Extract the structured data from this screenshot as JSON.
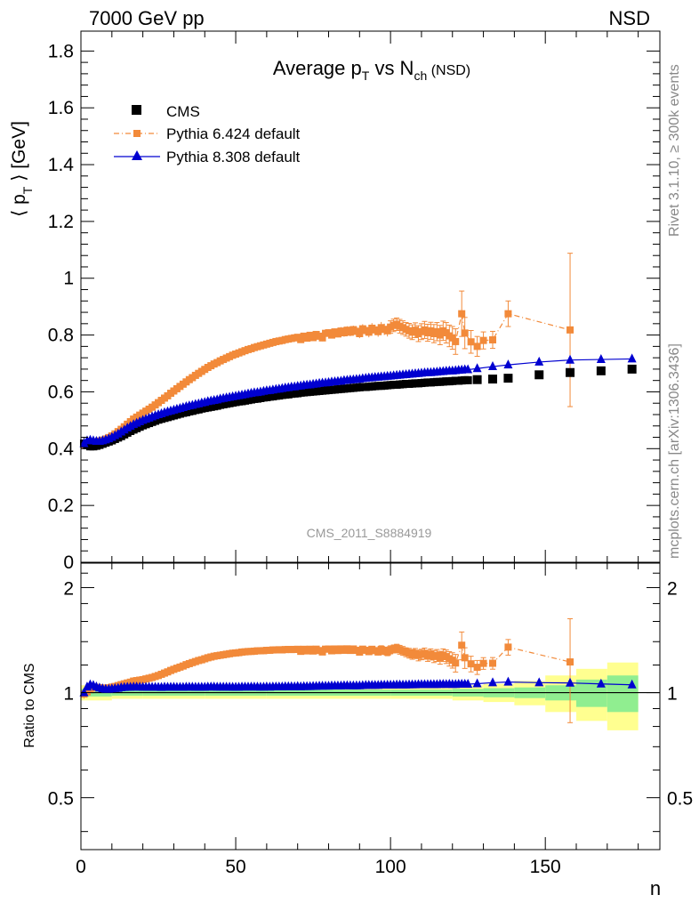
{
  "header": {
    "left": "7000 GeV pp",
    "right": "NSD"
  },
  "side_labels": {
    "rivet": "Rivet 3.1.10, ≥ 300k events",
    "mcplots": "mcplots.cern.ch [arXiv:1306.3436]"
  },
  "colors": {
    "cms": "#000000",
    "pythia6": "#f28a3a",
    "pythia8": "#0000d0",
    "band_inner": "#90ee90",
    "band_outer": "#ffff90"
  },
  "chart_data": [
    {
      "type": "scatter",
      "title": {
        "main": "Average p",
        "sub1": "T",
        "mid": " vs N",
        "sub2": "ch",
        "tail": " (NSD)"
      },
      "ylabel": {
        "pre": "⟨ p",
        "sub": "T",
        "post": " ⟩ [GeV]"
      },
      "xlim": [
        0,
        187
      ],
      "ylim": [
        0,
        1.87
      ],
      "yticks": [
        0,
        0.2,
        0.4,
        0.6,
        0.8,
        1,
        1.2,
        1.4,
        1.6,
        1.8
      ],
      "ytick_labels": [
        "0",
        "0.2",
        "0.4",
        "0.6",
        "0.8",
        "1",
        "1.2",
        "1.4",
        "1.6",
        "1.8"
      ],
      "watermark": "CMS_2011_S8884919",
      "legend": [
        "CMS",
        "Pythia 6.424 default",
        "Pythia 8.308 default"
      ],
      "series": [
        {
          "name": "CMS",
          "x": [
            1,
            2,
            3,
            4,
            5,
            6,
            7,
            8,
            9,
            10,
            11,
            12,
            13,
            14,
            15,
            16,
            17,
            18,
            19,
            20,
            21,
            22,
            23,
            24,
            25,
            26,
            27,
            28,
            29,
            30,
            31,
            32,
            33,
            34,
            35,
            36,
            37,
            38,
            39,
            40,
            41,
            42,
            43,
            44,
            45,
            46,
            47,
            48,
            49,
            50,
            51,
            52,
            53,
            54,
            55,
            56,
            57,
            58,
            59,
            60,
            61,
            62,
            63,
            64,
            65,
            66,
            67,
            68,
            69,
            70,
            71,
            72,
            73,
            74,
            75,
            76,
            77,
            78,
            79,
            80,
            81,
            82,
            83,
            84,
            85,
            86,
            87,
            88,
            89,
            90,
            91,
            92,
            93,
            94,
            95,
            96,
            97,
            98,
            99,
            100,
            101,
            102,
            103,
            104,
            105,
            106,
            107,
            108,
            109,
            110,
            111,
            112,
            113,
            114,
            115,
            116,
            117,
            118,
            119,
            120,
            121,
            122,
            123,
            124,
            125,
            128,
            133,
            138,
            148,
            158,
            168,
            178
          ],
          "y": [
            0.418,
            0.412,
            0.408,
            0.408,
            0.41,
            0.413,
            0.417,
            0.421,
            0.425,
            0.429,
            0.434,
            0.439,
            0.444,
            0.45,
            0.456,
            0.462,
            0.467,
            0.472,
            0.477,
            0.482,
            0.486,
            0.49,
            0.494,
            0.498,
            0.502,
            0.505,
            0.508,
            0.511,
            0.514,
            0.517,
            0.52,
            0.523,
            0.526,
            0.528,
            0.531,
            0.533,
            0.536,
            0.538,
            0.541,
            0.543,
            0.545,
            0.547,
            0.549,
            0.551,
            0.554,
            0.556,
            0.558,
            0.56,
            0.562,
            0.564,
            0.566,
            0.567,
            0.569,
            0.571,
            0.573,
            0.575,
            0.576,
            0.578,
            0.58,
            0.581,
            0.583,
            0.584,
            0.586,
            0.587,
            0.589,
            0.59,
            0.591,
            0.593,
            0.594,
            0.595,
            0.597,
            0.598,
            0.599,
            0.6,
            0.601,
            0.602,
            0.603,
            0.604,
            0.605,
            0.606,
            0.607,
            0.608,
            0.609,
            0.61,
            0.611,
            0.612,
            0.613,
            0.614,
            0.615,
            0.616,
            0.617,
            0.617,
            0.618,
            0.619,
            0.62,
            0.621,
            0.621,
            0.622,
            0.623,
            0.624,
            0.625,
            0.625,
            0.626,
            0.627,
            0.628,
            0.628,
            0.629,
            0.63,
            0.63,
            0.631,
            0.632,
            0.633,
            0.633,
            0.634,
            0.635,
            0.635,
            0.636,
            0.637,
            0.637,
            0.638,
            0.639,
            0.639,
            0.64,
            0.641,
            0.641,
            0.643,
            0.645,
            0.648,
            0.66,
            0.668,
            0.674,
            0.68
          ]
        },
        {
          "name": "Pythia 6.424 default",
          "x": [
            1,
            2,
            3,
            4,
            5,
            6,
            7,
            8,
            9,
            10,
            11,
            12,
            13,
            14,
            15,
            16,
            17,
            18,
            19,
            20,
            21,
            22,
            23,
            24,
            25,
            26,
            27,
            28,
            29,
            30,
            31,
            32,
            33,
            34,
            35,
            36,
            37,
            38,
            39,
            40,
            41,
            42,
            43,
            44,
            45,
            46,
            47,
            48,
            49,
            50,
            51,
            52,
            53,
            54,
            55,
            56,
            57,
            58,
            59,
            60,
            61,
            62,
            63,
            64,
            65,
            66,
            67,
            68,
            69,
            70,
            71,
            72,
            73,
            74,
            75,
            76,
            77,
            78,
            79,
            80,
            81,
            82,
            83,
            84,
            85,
            86,
            87,
            88,
            89,
            90,
            91,
            92,
            93,
            94,
            95,
            96,
            97,
            98,
            99,
            100,
            101,
            102,
            103,
            104,
            105,
            106,
            107,
            108,
            109,
            110,
            111,
            112,
            113,
            114,
            115,
            116,
            117,
            118,
            119,
            120,
            121,
            123,
            124,
            126,
            128,
            130,
            133,
            138,
            158
          ],
          "y": [
            0.414,
            0.414,
            0.417,
            0.421,
            0.424,
            0.427,
            0.43,
            0.434,
            0.439,
            0.445,
            0.452,
            0.46,
            0.468,
            0.477,
            0.486,
            0.495,
            0.504,
            0.511,
            0.518,
            0.525,
            0.532,
            0.539,
            0.546,
            0.554,
            0.562,
            0.57,
            0.578,
            0.586,
            0.595,
            0.603,
            0.611,
            0.619,
            0.627,
            0.635,
            0.643,
            0.65,
            0.658,
            0.665,
            0.672,
            0.679,
            0.686,
            0.692,
            0.698,
            0.703,
            0.709,
            0.714,
            0.719,
            0.724,
            0.729,
            0.733,
            0.737,
            0.741,
            0.745,
            0.749,
            0.752,
            0.756,
            0.759,
            0.762,
            0.765,
            0.768,
            0.771,
            0.774,
            0.777,
            0.779,
            0.781,
            0.784,
            0.786,
            0.788,
            0.79,
            0.792,
            0.784,
            0.796,
            0.789,
            0.799,
            0.791,
            0.802,
            0.796,
            0.79,
            0.806,
            0.808,
            0.8,
            0.811,
            0.804,
            0.814,
            0.808,
            0.817,
            0.81,
            0.819,
            0.813,
            0.805,
            0.822,
            0.816,
            0.81,
            0.824,
            0.818,
            0.812,
            0.826,
            0.82,
            0.815,
            0.828,
            0.834,
            0.838,
            0.831,
            0.826,
            0.82,
            0.815,
            0.81,
            0.817,
            0.805,
            0.812,
            0.818,
            0.808,
            0.815,
            0.805,
            0.812,
            0.8,
            0.815,
            0.808,
            0.797,
            0.79,
            0.777,
            0.875,
            0.807,
            0.776,
            0.76,
            0.781,
            0.783,
            0.875,
            0.818
          ],
          "err": [
            0.012,
            0.01,
            0.008,
            0.008,
            0.008,
            0.008,
            0.008,
            0.008,
            0.008,
            0.008,
            0.008,
            0.008,
            0.008,
            0.008,
            0.008,
            0.008,
            0.008,
            0.008,
            0.008,
            0.008,
            0.008,
            0.008,
            0.008,
            0.008,
            0.008,
            0.008,
            0.008,
            0.008,
            0.008,
            0.008,
            0.008,
            0.008,
            0.008,
            0.008,
            0.008,
            0.008,
            0.008,
            0.008,
            0.008,
            0.008,
            0.008,
            0.008,
            0.008,
            0.008,
            0.008,
            0.008,
            0.008,
            0.008,
            0.008,
            0.008,
            0.008,
            0.008,
            0.008,
            0.008,
            0.008,
            0.008,
            0.008,
            0.008,
            0.008,
            0.008,
            0.008,
            0.008,
            0.008,
            0.008,
            0.01,
            0.01,
            0.01,
            0.01,
            0.01,
            0.01,
            0.01,
            0.01,
            0.01,
            0.01,
            0.01,
            0.01,
            0.012,
            0.012,
            0.012,
            0.012,
            0.012,
            0.012,
            0.012,
            0.014,
            0.014,
            0.014,
            0.014,
            0.014,
            0.016,
            0.016,
            0.016,
            0.016,
            0.018,
            0.018,
            0.018,
            0.018,
            0.02,
            0.02,
            0.02,
            0.022,
            0.022,
            0.022,
            0.024,
            0.024,
            0.024,
            0.026,
            0.026,
            0.026,
            0.028,
            0.028,
            0.03,
            0.03,
            0.03,
            0.032,
            0.032,
            0.034,
            0.034,
            0.036,
            0.038,
            0.04,
            0.045,
            0.08,
            0.055,
            0.04,
            0.035,
            0.03,
            0.03,
            0.045,
            0.27
          ]
        },
        {
          "name": "Pythia 8.308 default",
          "x": [
            1,
            2,
            3,
            4,
            5,
            6,
            7,
            8,
            9,
            10,
            11,
            12,
            13,
            14,
            15,
            16,
            17,
            18,
            19,
            20,
            21,
            22,
            23,
            24,
            25,
            26,
            27,
            28,
            29,
            30,
            31,
            32,
            33,
            34,
            35,
            36,
            37,
            38,
            39,
            40,
            41,
            42,
            43,
            44,
            45,
            46,
            47,
            48,
            49,
            50,
            51,
            52,
            53,
            54,
            55,
            56,
            57,
            58,
            59,
            60,
            61,
            62,
            63,
            64,
            65,
            66,
            67,
            68,
            69,
            70,
            71,
            72,
            73,
            74,
            75,
            76,
            77,
            78,
            79,
            80,
            81,
            82,
            83,
            84,
            85,
            86,
            87,
            88,
            89,
            90,
            91,
            92,
            93,
            94,
            95,
            96,
            97,
            98,
            99,
            100,
            101,
            102,
            103,
            104,
            105,
            106,
            107,
            108,
            109,
            110,
            111,
            112,
            113,
            114,
            115,
            116,
            117,
            118,
            119,
            120,
            121,
            122,
            123,
            124,
            125,
            128,
            133,
            138,
            148,
            158,
            168,
            178
          ],
          "y": [
            0.418,
            0.428,
            0.43,
            0.428,
            0.426,
            0.426,
            0.428,
            0.431,
            0.435,
            0.44,
            0.446,
            0.452,
            0.459,
            0.466,
            0.473,
            0.479,
            0.485,
            0.49,
            0.495,
            0.5,
            0.504,
            0.508,
            0.512,
            0.516,
            0.52,
            0.523,
            0.527,
            0.53,
            0.533,
            0.536,
            0.539,
            0.542,
            0.545,
            0.548,
            0.551,
            0.553,
            0.556,
            0.558,
            0.561,
            0.563,
            0.566,
            0.568,
            0.57,
            0.572,
            0.575,
            0.577,
            0.579,
            0.581,
            0.583,
            0.585,
            0.587,
            0.589,
            0.591,
            0.593,
            0.595,
            0.597,
            0.598,
            0.6,
            0.602,
            0.604,
            0.605,
            0.607,
            0.609,
            0.61,
            0.612,
            0.614,
            0.615,
            0.617,
            0.618,
            0.62,
            0.621,
            0.623,
            0.624,
            0.625,
            0.627,
            0.628,
            0.63,
            0.631,
            0.632,
            0.633,
            0.635,
            0.636,
            0.637,
            0.638,
            0.64,
            0.641,
            0.642,
            0.643,
            0.644,
            0.645,
            0.647,
            0.648,
            0.649,
            0.65,
            0.651,
            0.652,
            0.653,
            0.654,
            0.655,
            0.656,
            0.657,
            0.658,
            0.659,
            0.66,
            0.661,
            0.662,
            0.663,
            0.664,
            0.665,
            0.666,
            0.667,
            0.668,
            0.668,
            0.669,
            0.67,
            0.671,
            0.672,
            0.673,
            0.674,
            0.674,
            0.675,
            0.676,
            0.677,
            0.678,
            0.678,
            0.682,
            0.689,
            0.695,
            0.705,
            0.712,
            0.714,
            0.716
          ]
        }
      ]
    },
    {
      "type": "scatter",
      "ylabel": "Ratio to CMS",
      "xlabel": "n",
      "xlim": [
        0,
        187
      ],
      "ylim": [
        0.355,
        2.35
      ],
      "ylog": true,
      "yticks": [
        0.5,
        1,
        2
      ],
      "ytick_labels": [
        "0.5",
        "1",
        "2"
      ],
      "xticks": [
        0,
        50,
        100,
        150
      ],
      "xtick_labels": [
        "0",
        "50",
        "100",
        "150"
      ],
      "band": {
        "x_edges": [
          0,
          10,
          20,
          40,
          60,
          80,
          100,
          120,
          130,
          140,
          150,
          160,
          170,
          180
        ],
        "inner": [
          0.025,
          0.02,
          0.02,
          0.02,
          0.02,
          0.02,
          0.02,
          0.025,
          0.03,
          0.035,
          0.05,
          0.09,
          0.12
        ],
        "outer": [
          0.05,
          0.04,
          0.04,
          0.04,
          0.04,
          0.04,
          0.04,
          0.05,
          0.06,
          0.08,
          0.12,
          0.17,
          0.22
        ]
      }
    }
  ]
}
